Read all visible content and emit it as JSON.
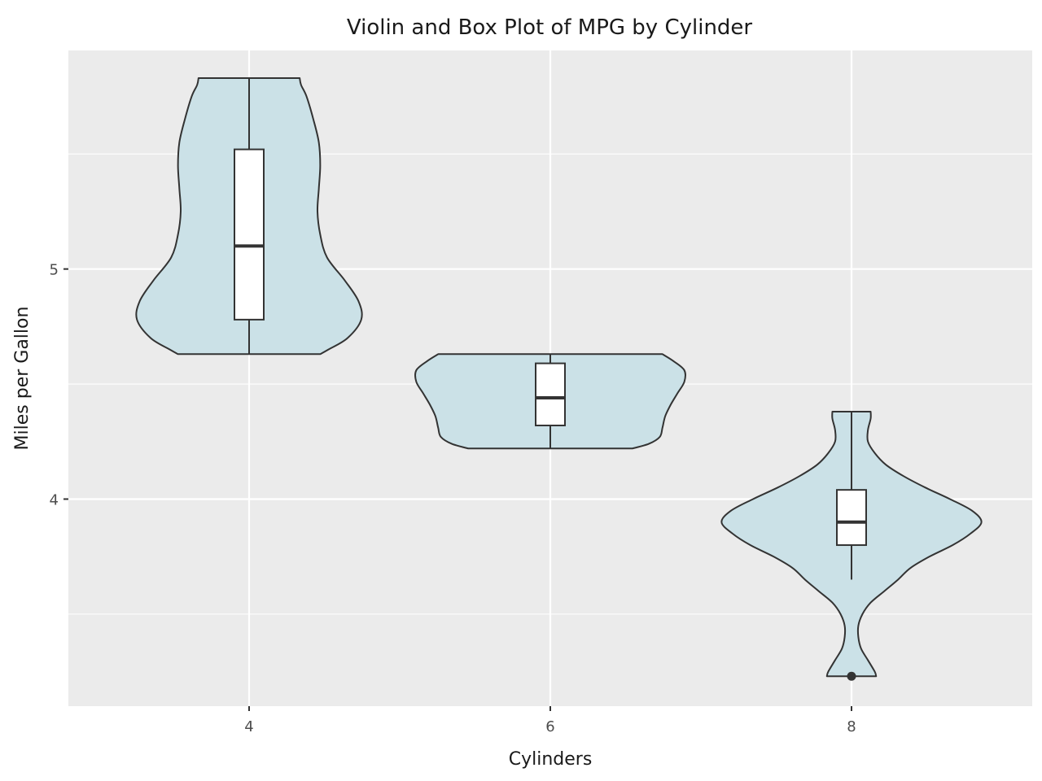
{
  "chart_data": {
    "type": "violin",
    "title": "Violin and Box Plot of MPG by Cylinder",
    "xlabel": "Cylinders",
    "ylabel": "Miles per Gallon",
    "categories": [
      "4",
      "6",
      "8"
    ],
    "y_ticks": [
      4,
      5
    ],
    "y_tick_labels": [
      "4",
      "5"
    ],
    "ylim": [
      3.1,
      5.95
    ],
    "grid": true,
    "colors": {
      "panel": "#ebebeb",
      "grid_major": "#ffffff",
      "violin_fill": "#cbe1e7",
      "outline": "#333333",
      "box_fill": "#ffffff"
    },
    "groups": [
      {
        "category": "4",
        "violin": {
          "y": [
            4.63,
            4.65,
            4.7,
            4.78,
            4.86,
            4.95,
            5.05,
            5.15,
            5.25,
            5.35,
            5.45,
            5.55,
            5.65,
            5.75,
            5.8,
            5.83
          ],
          "density": [
            0.52,
            0.58,
            0.72,
            0.82,
            0.8,
            0.7,
            0.57,
            0.52,
            0.5,
            0.51,
            0.52,
            0.51,
            0.47,
            0.42,
            0.38,
            0.37
          ]
        },
        "box": {
          "min": 4.63,
          "q1": 4.78,
          "median": 5.1,
          "q3": 5.52,
          "max": 5.83
        },
        "outliers": []
      },
      {
        "category": "6",
        "violin": {
          "y": [
            4.22,
            4.24,
            4.27,
            4.31,
            4.36,
            4.41,
            4.46,
            4.51,
            4.56,
            4.6,
            4.63
          ],
          "density": [
            0.6,
            0.72,
            0.8,
            0.82,
            0.84,
            0.88,
            0.93,
            0.98,
            0.98,
            0.9,
            0.82
          ]
        },
        "box": {
          "min": 4.22,
          "q1": 4.32,
          "median": 4.44,
          "q3": 4.59,
          "max": 4.63
        },
        "outliers": []
      },
      {
        "category": "8",
        "violin": {
          "y": [
            3.23,
            3.25,
            3.3,
            3.35,
            3.4,
            3.45,
            3.5,
            3.55,
            3.6,
            3.65,
            3.7,
            3.75,
            3.8,
            3.85,
            3.9,
            3.95,
            4.0,
            4.05,
            4.1,
            4.15,
            4.2,
            4.25,
            4.3,
            4.35,
            4.38
          ],
          "density": [
            0.18,
            0.17,
            0.12,
            0.07,
            0.05,
            0.05,
            0.08,
            0.14,
            0.24,
            0.34,
            0.43,
            0.57,
            0.74,
            0.87,
            0.95,
            0.88,
            0.72,
            0.54,
            0.38,
            0.25,
            0.17,
            0.12,
            0.12,
            0.14,
            0.14
          ]
        },
        "box": {
          "min": 3.65,
          "q1": 3.8,
          "median": 3.9,
          "q3": 4.04,
          "max": 4.38
        },
        "outliers": [
          3.23
        ]
      }
    ]
  }
}
